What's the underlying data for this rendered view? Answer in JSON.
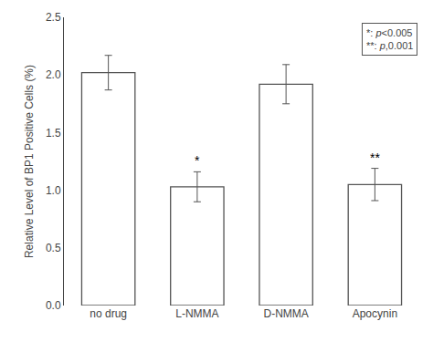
{
  "chart_data": {
    "type": "bar",
    "categories": [
      "no drug",
      "L-NMMA",
      "D-NMMA",
      "Apocynin"
    ],
    "values": [
      2.02,
      1.03,
      1.92,
      1.05
    ],
    "errors": [
      0.15,
      0.13,
      0.17,
      0.14
    ],
    "significance_labels": [
      null,
      "*",
      null,
      "**"
    ],
    "annotations": [
      "*: p<0.005",
      "**: p,0.001"
    ],
    "color": "#ffffff",
    "ylabel": "Relative Level of BP1 Positive Cells (%)",
    "ylim": [
      0.0,
      2.5
    ],
    "yticks": [
      {
        "value": 0.0,
        "label": "0.0"
      },
      0.5,
      {
        "value": 1.0,
        "label": "1.0"
      },
      1.5,
      {
        "value": 2.0,
        "label": "2.0"
      },
      2.5
    ],
    "grid": false
  }
}
